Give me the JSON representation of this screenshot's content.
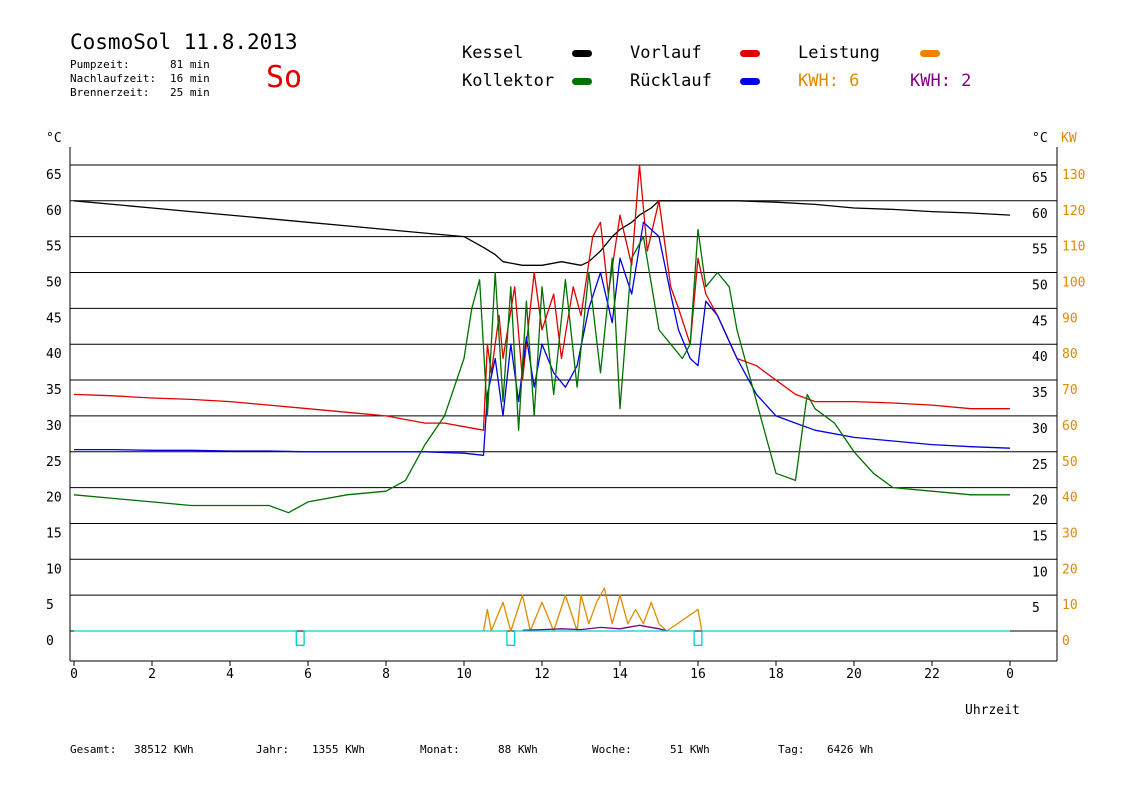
{
  "header": {
    "title": "CosmoSol 11.8.2013",
    "weekday": "So",
    "times": [
      {
        "label": "Pumpzeit:",
        "value": "81 min"
      },
      {
        "label": "Nachlaufzeit:",
        "value": "16 min"
      },
      {
        "label": "Brennerzeit:",
        "value": "25 min"
      }
    ]
  },
  "legend": {
    "kessel": {
      "label": "Kessel",
      "color": "#000000"
    },
    "kollektor": {
      "label": "Kollektor",
      "color": "#007000"
    },
    "vorlauf": {
      "label": "Vorlauf",
      "color": "#e00000"
    },
    "ruecklauf": {
      "label": "Rücklauf",
      "color": "#0000e0"
    },
    "leistung": {
      "label": "Leistung",
      "color": "#f08000"
    },
    "kwh_orange": {
      "label": "KWH: 6",
      "color": "#e08a00"
    },
    "kwh_purple": {
      "label": "KWH: 2",
      "color": "#800080"
    }
  },
  "footer": [
    {
      "label": "Gesamt:",
      "value": "38512 KWh"
    },
    {
      "label": "Jahr:",
      "value": "1355 KWh"
    },
    {
      "label": "Monat:",
      "value": "88 KWh"
    },
    {
      "label": "Woche:",
      "value": "51 KWh"
    },
    {
      "label": "Tag:",
      "value": "6426 Wh"
    }
  ],
  "chart_data": {
    "type": "line",
    "xlabel": "Uhrzeit",
    "x_ticks": [
      "0",
      "2",
      "4",
      "6",
      "8",
      "10",
      "12",
      "14",
      "16",
      "18",
      "20",
      "22",
      "0"
    ],
    "xlim": [
      0,
      24
    ],
    "left_unit": "°C",
    "right_unit_temp": "°C",
    "right_unit_power": "KW",
    "ylim": [
      -4,
      69
    ],
    "y_ticks_left": [
      "0",
      "5",
      "10",
      "15",
      "20",
      "25",
      "30",
      "35",
      "40",
      "45",
      "50",
      "55",
      "60",
      "65"
    ],
    "y_ticks_right_temp": [
      "5",
      "10",
      "15",
      "20",
      "25",
      "30",
      "35",
      "40",
      "45",
      "50",
      "55",
      "60",
      "65"
    ],
    "y_ticks_right_power": [
      "0",
      "10",
      "20",
      "30",
      "40",
      "50",
      "60",
      "70",
      "80",
      "90",
      "100",
      "110",
      "120",
      "130"
    ],
    "series": [
      {
        "name": "Kessel",
        "color": "#000000",
        "x": [
          0,
          1,
          2,
          3,
          4,
          5,
          6,
          7,
          8,
          9,
          10,
          10.5,
          10.8,
          11,
          11.5,
          12,
          12.5,
          13,
          13.2,
          13.5,
          13.8,
          14,
          14.3,
          14.5,
          14.8,
          15,
          15.2,
          15.5,
          16,
          17,
          18,
          19,
          20,
          21,
          22,
          23,
          24
        ],
        "y": [
          60,
          59.5,
          59,
          58.5,
          58,
          57.5,
          57,
          56.5,
          56,
          55.5,
          55,
          53.5,
          52.5,
          51.5,
          51,
          51,
          51.5,
          51,
          51.5,
          53,
          55,
          56,
          57,
          58,
          59,
          60,
          60,
          60,
          60,
          60,
          59.8,
          59.5,
          59,
          58.8,
          58.5,
          58.3,
          58
        ]
      },
      {
        "name": "Vorlauf",
        "color": "#e00000",
        "x": [
          0,
          1,
          2,
          3,
          4,
          5,
          6,
          7,
          8,
          9,
          9.5,
          10,
          10.5,
          10.6,
          10.7,
          10.9,
          11,
          11.3,
          11.5,
          11.8,
          12,
          12.3,
          12.5,
          12.8,
          13,
          13.3,
          13.5,
          13.7,
          14,
          14.3,
          14.5,
          14.7,
          15,
          15.3,
          15.5,
          15.8,
          16,
          16.2,
          16.5,
          17,
          17.5,
          18,
          18.5,
          19,
          19.5,
          20,
          21,
          22,
          23,
          24
        ],
        "y": [
          33,
          32.8,
          32.5,
          32.3,
          32,
          31.5,
          31,
          30.5,
          30,
          29,
          29,
          28.5,
          28,
          40,
          36,
          44,
          38,
          48,
          35,
          50,
          42,
          47,
          38,
          48,
          44,
          55,
          57,
          47,
          58,
          51,
          65,
          53,
          60,
          48,
          45,
          40,
          52,
          47,
          44,
          38,
          37,
          35,
          33,
          32,
          32,
          32,
          31.8,
          31.5,
          31,
          31
        ]
      },
      {
        "name": "Rücklauf",
        "color": "#0000e0",
        "x": [
          0,
          1,
          2,
          3,
          4,
          5,
          6,
          7,
          8,
          9,
          10,
          10.5,
          10.6,
          10.8,
          11,
          11.2,
          11.4,
          11.6,
          11.8,
          12,
          12.3,
          12.6,
          12.9,
          13.2,
          13.5,
          13.8,
          14,
          14.3,
          14.6,
          15,
          15.3,
          15.5,
          15.8,
          16,
          16.2,
          16.5,
          17,
          17.5,
          18,
          18.5,
          19,
          20,
          21,
          22,
          23,
          24
        ],
        "y": [
          25.3,
          25.3,
          25.2,
          25.2,
          25.1,
          25.1,
          25,
          25,
          25,
          25,
          24.8,
          24.5,
          33,
          38,
          30,
          40,
          32,
          41,
          34,
          40,
          36,
          34,
          37,
          45,
          50,
          43,
          52,
          47,
          57,
          55,
          47,
          42,
          38,
          37,
          46,
          44,
          38,
          33,
          30,
          29,
          28,
          27,
          26.5,
          26,
          25.7,
          25.5
        ]
      },
      {
        "name": "Kollektor",
        "color": "#007000",
        "x": [
          0,
          1,
          2,
          3,
          4,
          5,
          5.5,
          6,
          7,
          8,
          8.5,
          9,
          9.5,
          10,
          10.2,
          10.4,
          10.6,
          10.8,
          11,
          11.2,
          11.4,
          11.6,
          11.8,
          12,
          12.3,
          12.6,
          12.9,
          13.2,
          13.5,
          13.8,
          14,
          14.3,
          14.6,
          15,
          15.3,
          15.6,
          15.8,
          16,
          16.2,
          16.5,
          16.8,
          17,
          17.5,
          18,
          18.5,
          18.8,
          19,
          19.5,
          20,
          20.5,
          21,
          22,
          23,
          24
        ],
        "y": [
          19,
          18.5,
          18,
          17.5,
          17.5,
          17.5,
          16.5,
          18,
          19,
          19.5,
          21,
          26,
          30,
          38,
          45,
          49,
          30,
          50,
          32,
          48,
          28,
          46,
          30,
          48,
          33,
          49,
          34,
          50,
          36,
          52,
          31,
          52,
          55,
          42,
          40,
          38,
          40,
          56,
          48,
          50,
          48,
          42,
          32,
          22,
          21,
          33,
          31,
          29,
          25,
          22,
          20,
          19.5,
          19,
          19
        ]
      },
      {
        "name": "Leistung",
        "color": "#e08a00",
        "x": [
          10.5,
          10.6,
          10.7,
          11,
          11.2,
          11.5,
          11.7,
          12,
          12.3,
          12.6,
          12.9,
          13,
          13.2,
          13.4,
          13.6,
          13.8,
          14,
          14.2,
          14.4,
          14.6,
          14.8,
          15,
          15.2,
          16,
          16.1
        ],
        "y": [
          0,
          3,
          0,
          4,
          0,
          5,
          0,
          4,
          0,
          5,
          0,
          5,
          1,
          4,
          6,
          1,
          5,
          1,
          3,
          1,
          4,
          1,
          0,
          3,
          0
        ]
      },
      {
        "name": "KWH",
        "color": "#800080",
        "x": [
          11.5,
          12,
          12.5,
          13,
          13.5,
          14,
          14.5,
          15,
          15.2
        ],
        "y": [
          0.1,
          0.2,
          0.3,
          0.2,
          0.5,
          0.3,
          0.8,
          0.3,
          0
        ]
      },
      {
        "name": "Pumpe",
        "color": "#00d0d0",
        "x": [
          0,
          5.7,
          5.7,
          5.9,
          5.9,
          11.1,
          11.1,
          11.3,
          11.3,
          15.9,
          15.9,
          16.1,
          16.1,
          24
        ],
        "y": [
          0,
          0,
          -2,
          -2,
          0,
          0,
          -2,
          -2,
          0,
          0,
          -2,
          -2,
          0,
          0
        ]
      }
    ]
  }
}
